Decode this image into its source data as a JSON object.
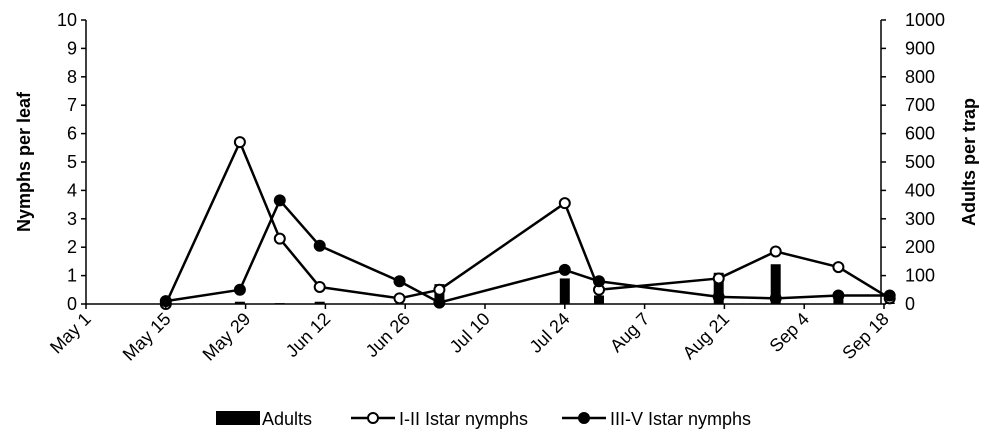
{
  "chart_data": {
    "type": "line",
    "x_type": "date",
    "x_ticks": [
      "May 1",
      "May 15",
      "May 29",
      "Jun 12",
      "Jun 26",
      "Jul 10",
      "Jul 24",
      "Aug 7",
      "Aug 21",
      "Sep 4",
      "Sep 18"
    ],
    "ylabel": "Nymphs per leaf",
    "ylim": [
      0,
      10
    ],
    "y_ticks": [
      0,
      1,
      2,
      3,
      4,
      5,
      6,
      7,
      8,
      9,
      10
    ],
    "y2label": "Adults per trap",
    "y2lim": [
      0,
      1000
    ],
    "y2_ticks": [
      0,
      100,
      200,
      300,
      400,
      500,
      600,
      700,
      800,
      900,
      1000
    ],
    "grid": false,
    "legend_position": "bottom",
    "series": [
      {
        "name": "Adults",
        "kind": "bar",
        "axis": "right",
        "color": "#000000",
        "points": [
          {
            "x": "May 15",
            "y": 0
          },
          {
            "x": "May 28",
            "y": 8
          },
          {
            "x": "Jun 4",
            "y": 3
          },
          {
            "x": "Jun 11",
            "y": 8
          },
          {
            "x": "Jun 25",
            "y": 2
          },
          {
            "x": "Jul 2",
            "y": 70
          },
          {
            "x": "Jul 24",
            "y": 90
          },
          {
            "x": "Jul 30",
            "y": 30
          },
          {
            "x": "Aug 20",
            "y": 110
          },
          {
            "x": "Aug 30",
            "y": 140
          },
          {
            "x": "Sep 10",
            "y": 20
          },
          {
            "x": "Sep 19",
            "y": 5
          }
        ]
      },
      {
        "name": "I-II Istar nymphs",
        "kind": "line",
        "marker": "open-circle",
        "axis": "left",
        "color": "#000000",
        "points": [
          {
            "x": "May 15",
            "y": 0.0
          },
          {
            "x": "May 28",
            "y": 5.7
          },
          {
            "x": "Jun 4",
            "y": 2.3
          },
          {
            "x": "Jun 11",
            "y": 0.6
          },
          {
            "x": "Jun 25",
            "y": 0.2
          },
          {
            "x": "Jul 2",
            "y": 0.5
          },
          {
            "x": "Jul 24",
            "y": 3.55
          },
          {
            "x": "Jul 30",
            "y": 0.5
          },
          {
            "x": "Aug 20",
            "y": 0.9
          },
          {
            "x": "Aug 30",
            "y": 1.85
          },
          {
            "x": "Sep 10",
            "y": 1.3
          },
          {
            "x": "Sep 19",
            "y": 0.2
          }
        ]
      },
      {
        "name": "III-V Istar nymphs",
        "kind": "line",
        "marker": "filled-circle",
        "axis": "left",
        "color": "#000000",
        "points": [
          {
            "x": "May 15",
            "y": 0.1
          },
          {
            "x": "May 28",
            "y": 0.5
          },
          {
            "x": "Jun 4",
            "y": 3.65
          },
          {
            "x": "Jun 11",
            "y": 2.05
          },
          {
            "x": "Jun 25",
            "y": 0.8
          },
          {
            "x": "Jul 2",
            "y": 0.05
          },
          {
            "x": "Jul 24",
            "y": 1.2
          },
          {
            "x": "Jul 30",
            "y": 0.8
          },
          {
            "x": "Aug 20",
            "y": 0.25
          },
          {
            "x": "Aug 30",
            "y": 0.2
          },
          {
            "x": "Sep 10",
            "y": 0.3
          },
          {
            "x": "Sep 19",
            "y": 0.3
          }
        ]
      }
    ]
  }
}
